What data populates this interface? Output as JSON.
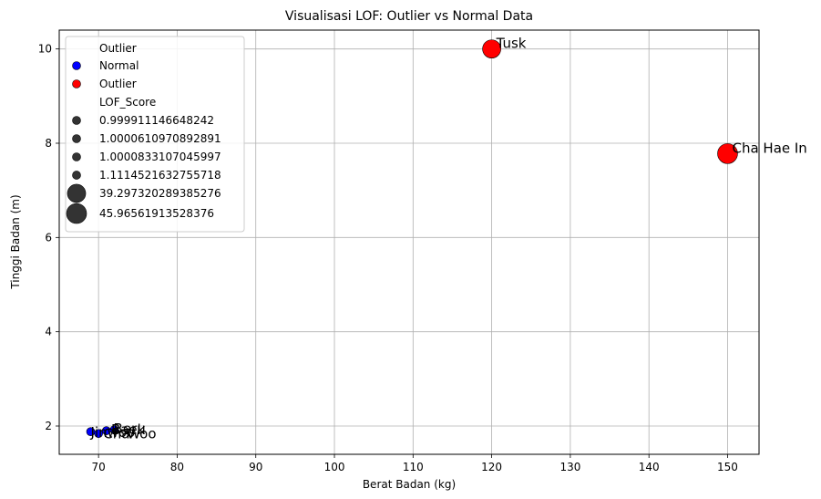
{
  "chart_data": {
    "type": "scatter",
    "title": "Visualisasi LOF: Outlier vs Normal Data",
    "xlabel": "Berat Badan (kg)",
    "ylabel": "Tinggi Badan (m)",
    "xlim": [
      65,
      154
    ],
    "ylim": [
      1.4,
      10.4
    ],
    "xticks": [
      70,
      80,
      90,
      100,
      110,
      120,
      130,
      140,
      150
    ],
    "yticks": [
      2,
      4,
      6,
      8,
      10
    ],
    "grid": true,
    "legend_position": "top-left",
    "colors": {
      "Normal": "#0000ff",
      "Outlier": "#ff0000",
      "size_marker": "#333333"
    },
    "points": [
      {
        "label": "Jinwoo",
        "x": 69,
        "y": 1.88,
        "category": "Normal",
        "lof": 1.0000610970892891
      },
      {
        "label": "Cha",
        "x": 70,
        "y": 1.84,
        "category": "Normal",
        "lof": 0.999911146648242
      },
      {
        "label": "Baek",
        "x": 71,
        "y": 1.9,
        "category": "Normal",
        "lof": 1.0000833107045997
      },
      {
        "label": "Beru",
        "x": 72,
        "y": 1.92,
        "category": "Normal",
        "lof": 1.1114521632755718
      },
      {
        "label": "Tusk",
        "x": 120,
        "y": 10.0,
        "category": "Outlier",
        "lof": 39.297320289385276
      },
      {
        "label": "Cha Hae In",
        "x": 150,
        "y": 7.78,
        "category": "Outlier",
        "lof": 45.96561913528376
      }
    ],
    "overlap_labels": [
      "Jinwoo",
      "Cha",
      "Baek",
      "Beru",
      "Woo"
    ],
    "legend": {
      "hue_title": "Outlier",
      "hue_entries": [
        "Normal",
        "Outlier"
      ],
      "size_title": "LOF_Score",
      "size_entries": [
        "0.999911146648242",
        "1.0000610970892891",
        "1.0000833107045997",
        "1.1114521632755718",
        "39.297320289385276",
        "45.96561913528376"
      ]
    }
  }
}
